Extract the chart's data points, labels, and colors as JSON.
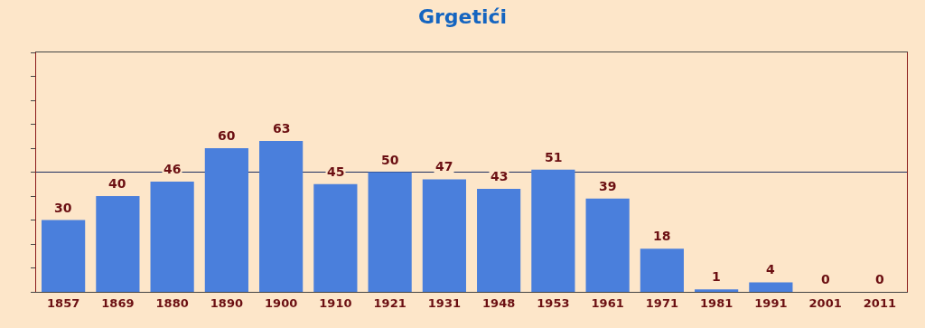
{
  "chart_data": {
    "type": "bar",
    "title": "Grgetići",
    "categories": [
      "1857",
      "1869",
      "1880",
      "1890",
      "1900",
      "1910",
      "1921",
      "1931",
      "1948",
      "1953",
      "1961",
      "1971",
      "1981",
      "1991",
      "2001",
      "2011"
    ],
    "values": [
      30,
      40,
      46,
      60,
      63,
      45,
      50,
      47,
      43,
      51,
      39,
      18,
      1,
      4,
      0,
      0
    ],
    "color": "#4a7fdc",
    "data_labels": true,
    "ylim": [
      0,
      100
    ],
    "yticks": [
      {
        "value": 0,
        "label": null
      },
      {
        "value": 10,
        "label": null
      },
      {
        "value": 20,
        "label": null
      },
      {
        "value": 30,
        "label": null
      },
      {
        "value": 40,
        "label": null
      },
      {
        "value": 50,
        "label": null
      },
      {
        "value": 60,
        "label": null
      },
      {
        "value": 70,
        "label": null
      },
      {
        "value": 80,
        "label": null
      },
      {
        "value": 90,
        "label": null
      },
      {
        "value": 100,
        "label": null
      }
    ],
    "tick_labels": "x",
    "ref_lines": [
      {
        "axis": "y",
        "value": 50,
        "label": null,
        "color": "#1f2f5f"
      }
    ],
    "grid": false,
    "legend": false
  }
}
